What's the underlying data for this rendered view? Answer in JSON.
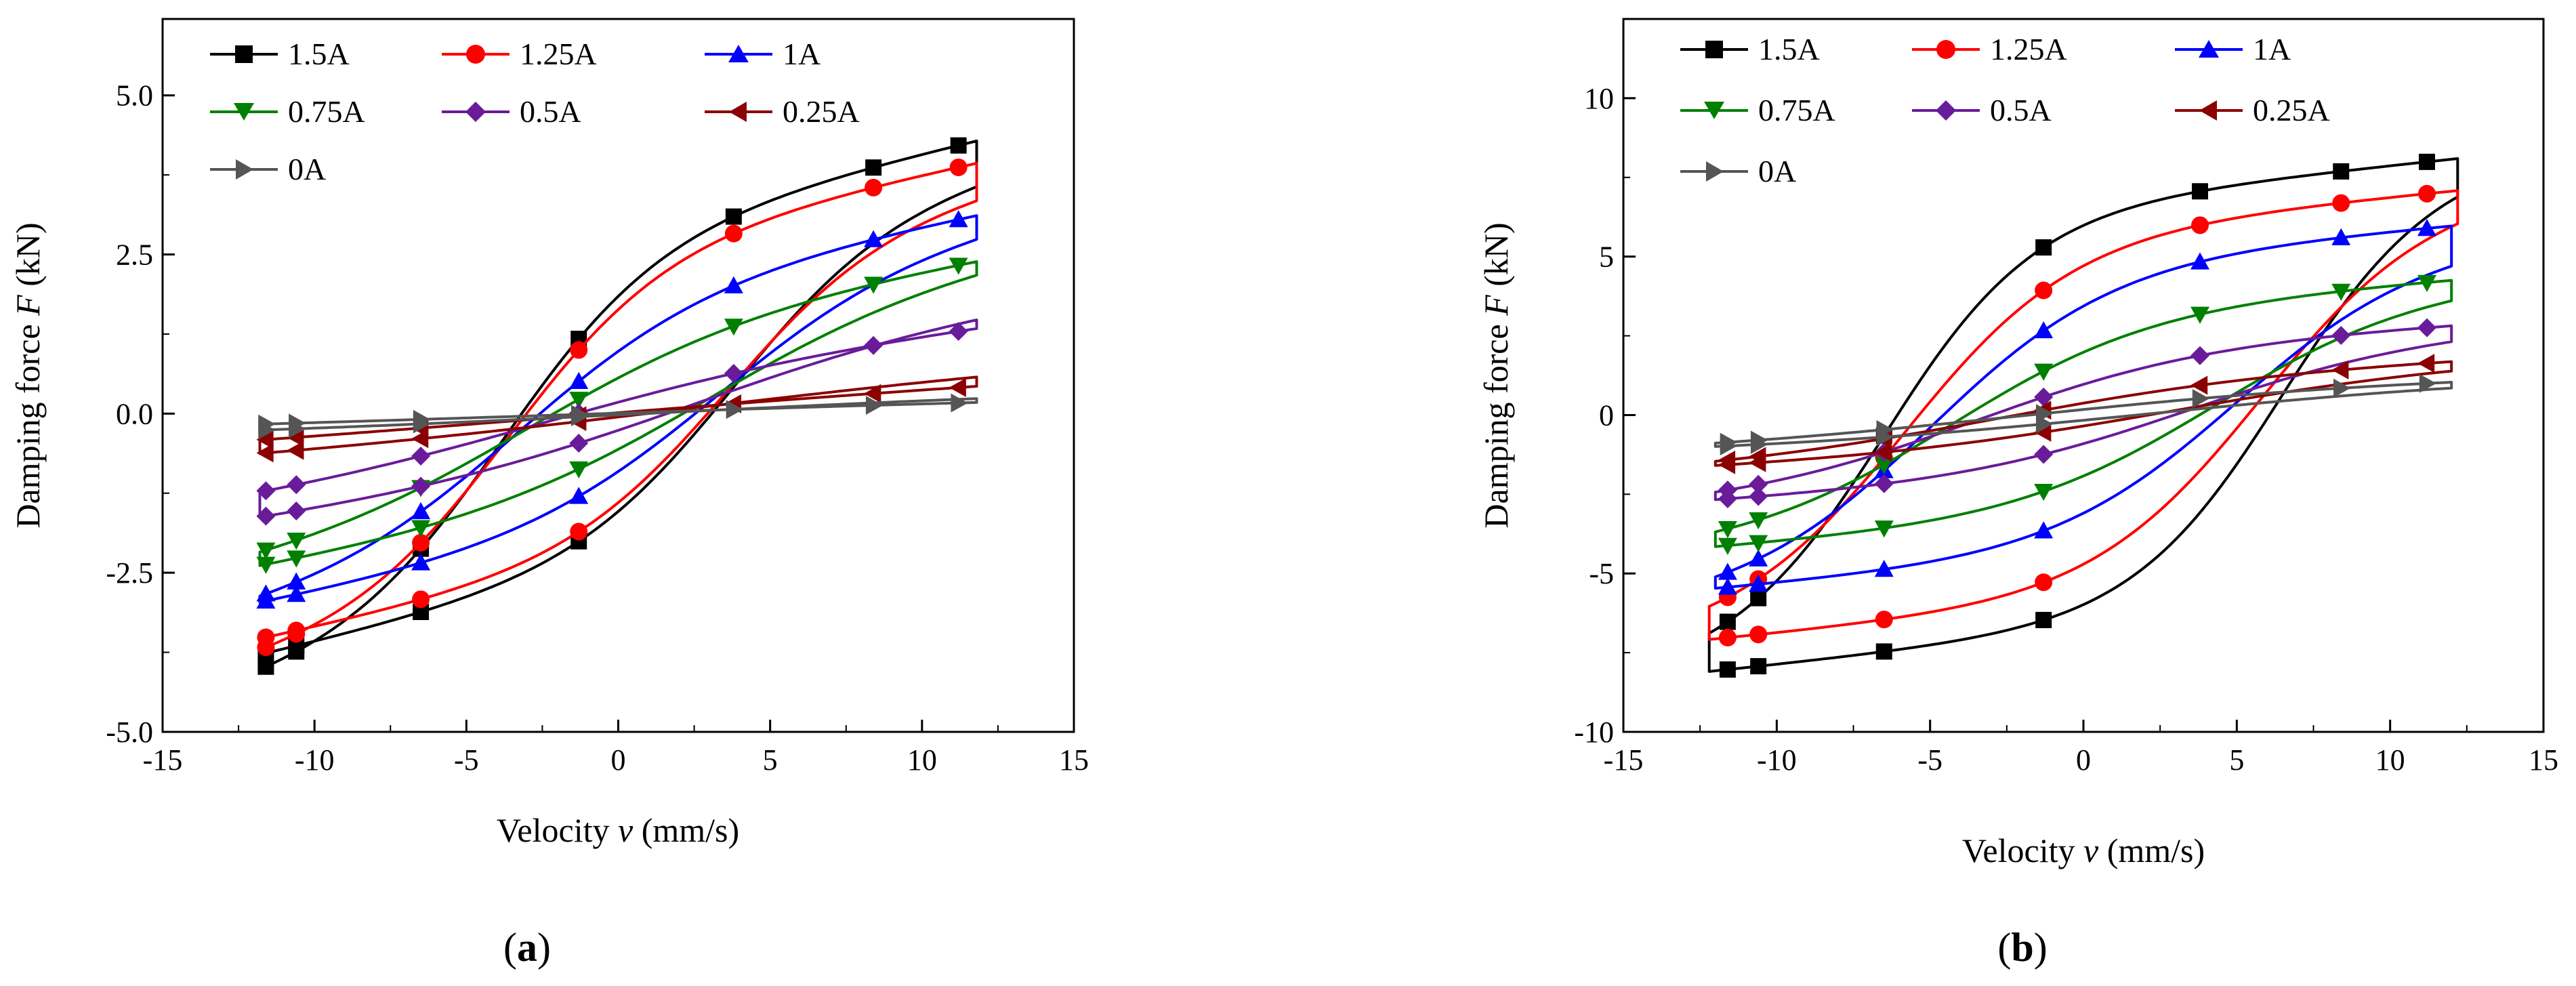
{
  "figure": {
    "panel_labels": [
      {
        "prefix": "(",
        "letter": "a",
        "suffix": ")"
      },
      {
        "prefix": "(",
        "letter": "b",
        "suffix": ")"
      }
    ]
  },
  "chart_data": [
    {
      "type": "line",
      "panel": "a",
      "title": "",
      "xlabel": {
        "pre": "Velocity ",
        "sym": "v",
        "post": " (mm/s)"
      },
      "ylabel": {
        "pre": "Damping force ",
        "sym": "F",
        "post": " (kN)"
      },
      "xlim": [
        -15,
        15
      ],
      "ylim": [
        -5.0,
        6.2
      ],
      "xticks": [
        -15,
        -10,
        -5,
        0,
        5,
        10,
        15
      ],
      "xtick_labels": [
        "-15",
        "-10",
        "-5",
        "0",
        "5",
        "10",
        "15"
      ],
      "yticks": [
        -5.0,
        -2.5,
        0.0,
        2.5,
        5.0
      ],
      "ytick_labels": [
        "-5.0",
        "-2.5",
        "0.0",
        "2.5",
        "5.0"
      ],
      "legend": "top-left",
      "series": [
        {
          "name": "1.5A",
          "color": "#000000",
          "marker": "square",
          "vmax": 11.8,
          "fmax": 4.3,
          "fmin": -3.8,
          "knee": 0.45,
          "slope": 0.11,
          "opening": 3.8,
          "steep": 0.95
        },
        {
          "name": "1.25A",
          "color": "#ff0000",
          "marker": "circle",
          "vmax": 11.8,
          "fmax": 3.95,
          "fmin": -3.55,
          "knee": 0.45,
          "slope": 0.1,
          "opening": 3.6,
          "steep": 0.95
        },
        {
          "name": "1A",
          "color": "#0000ff",
          "marker": "triangle-up",
          "vmax": 11.8,
          "fmax": 3.15,
          "fmin": -3.0,
          "knee": 0.55,
          "slope": 0.09,
          "opening": 3.3,
          "steep": 1.0
        },
        {
          "name": "0.75A",
          "color": "#008000",
          "marker": "triangle-down",
          "vmax": 11.8,
          "fmax": 2.45,
          "fmin": -2.45,
          "knee": 0.65,
          "slope": 0.08,
          "opening": 3.0,
          "steep": 1.05
        },
        {
          "name": "0.5A",
          "color": "#6a1b9a",
          "marker": "diamond",
          "vmax": 11.8,
          "fmax": 1.4,
          "fmin": -1.72,
          "knee": 0.8,
          "slope": 0.06,
          "opening": 2.5,
          "steep": 1.1
        },
        {
          "name": "0.25A",
          "color": "#8b0000",
          "marker": "triangle-left",
          "vmax": 11.8,
          "fmax": 0.45,
          "fmin": -0.7,
          "knee": 1.1,
          "slope": 0.03,
          "opening": 2.0,
          "steep": 1.2
        },
        {
          "name": "0A",
          "color": "#555555",
          "marker": "triangle-right",
          "vmax": 11.8,
          "fmax": 0.2,
          "fmin": -0.32,
          "knee": 1.3,
          "slope": 0.01,
          "opening": 1.5,
          "steep": 1.3
        }
      ]
    },
    {
      "type": "line",
      "panel": "b",
      "title": "",
      "xlabel": {
        "pre": "Velocity ",
        "sym": "v",
        "post": " (mm/s)"
      },
      "ylabel": {
        "pre": "Damping force ",
        "sym": "F",
        "post": " (kN)"
      },
      "xlim": [
        -15,
        15
      ],
      "ylim": [
        -10,
        12.5
      ],
      "xticks": [
        -15,
        -10,
        -5,
        0,
        5,
        10,
        15
      ],
      "xtick_labels": [
        "-15",
        "-10",
        "-5",
        "0",
        "5",
        "10",
        "15"
      ],
      "yticks": [
        -10,
        -5,
        0,
        5,
        10
      ],
      "ytick_labels": [
        "-10",
        "-5",
        "0",
        "5",
        "10"
      ],
      "legend": "top-left",
      "series": [
        {
          "name": "1.5A",
          "color": "#000000",
          "marker": "square",
          "vmax": 12.2,
          "fmax": 8.1,
          "fmin": -8.1,
          "knee": 0.4,
          "slope": 0.1,
          "opening": 6.5,
          "steep": 1.2
        },
        {
          "name": "1.25A",
          "color": "#ff0000",
          "marker": "circle",
          "vmax": 12.2,
          "fmax": 7.1,
          "fmin": -7.1,
          "knee": 0.45,
          "slope": 0.09,
          "opening": 5.8,
          "steep": 1.1
        },
        {
          "name": "1A",
          "color": "#0000ff",
          "marker": "triangle-up",
          "vmax": 12.0,
          "fmax": 6.0,
          "fmin": -5.5,
          "knee": 0.5,
          "slope": 0.08,
          "opening": 5.0,
          "steep": 1.0
        },
        {
          "name": "0.75A",
          "color": "#008000",
          "marker": "triangle-down",
          "vmax": 12.0,
          "fmax": 4.3,
          "fmin": -4.2,
          "knee": 0.55,
          "slope": 0.07,
          "opening": 4.3,
          "steep": 1.0
        },
        {
          "name": "0.5A",
          "color": "#6a1b9a",
          "marker": "diamond",
          "vmax": 12.0,
          "fmax": 2.9,
          "fmin": -2.75,
          "knee": 0.65,
          "slope": 0.05,
          "opening": 3.5,
          "steep": 1.1
        },
        {
          "name": "0.25A",
          "color": "#8b0000",
          "marker": "triangle-left",
          "vmax": 12.0,
          "fmax": 1.8,
          "fmin": -1.7,
          "knee": 0.8,
          "slope": 0.04,
          "opening": 2.8,
          "steep": 1.2
        },
        {
          "name": "0A",
          "color": "#555555",
          "marker": "triangle-right",
          "vmax": 12.0,
          "fmax": 1.2,
          "fmin": -1.15,
          "knee": 1.0,
          "slope": 0.02,
          "opening": 2.2,
          "steep": 1.3
        }
      ]
    }
  ]
}
